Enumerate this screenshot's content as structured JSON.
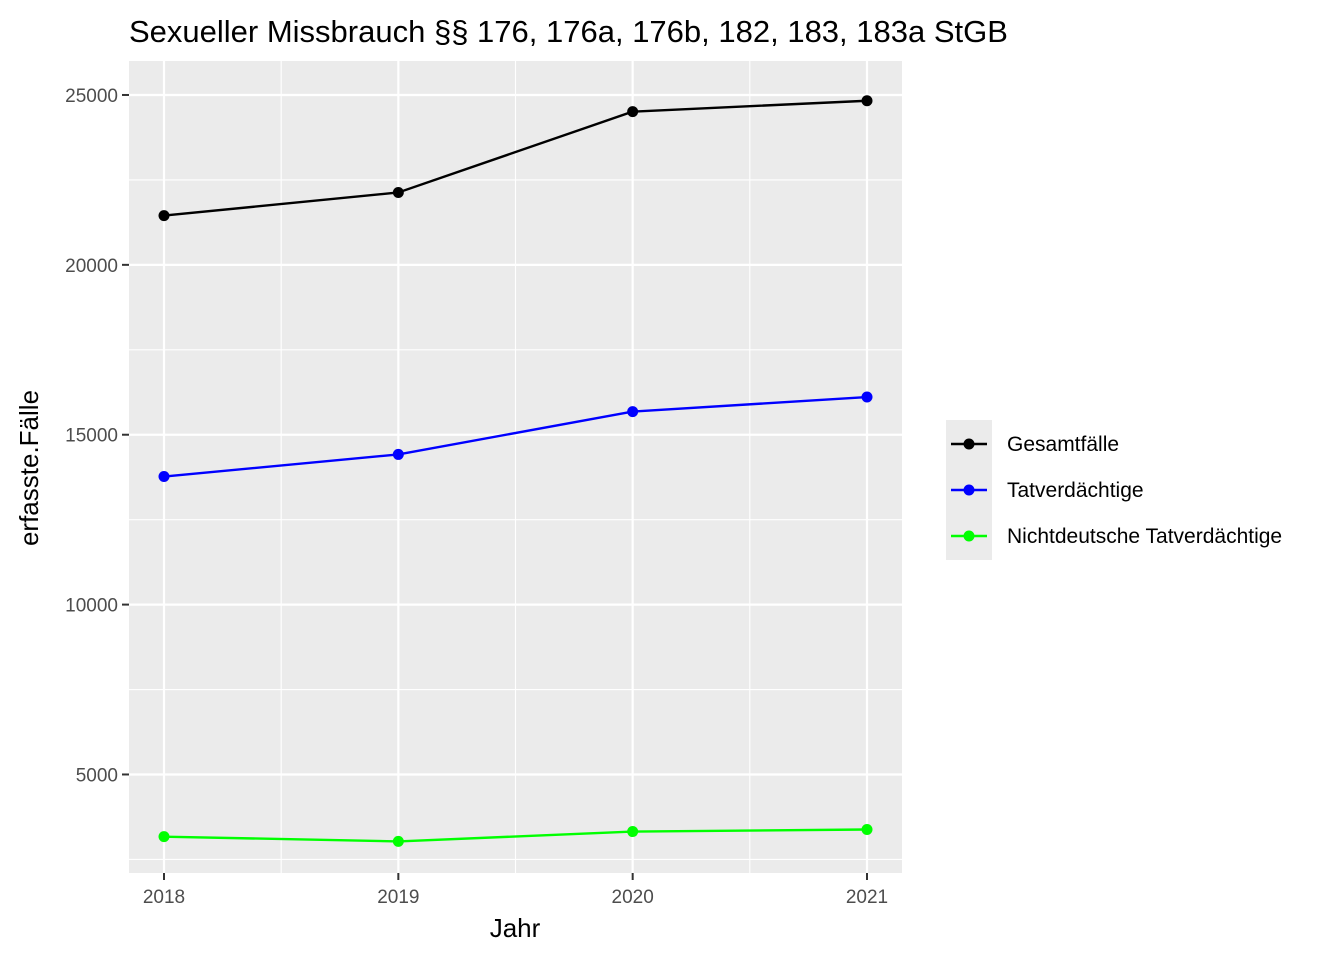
{
  "chart_data": {
    "type": "line",
    "title": "Sexueller Missbrauch §§ 176, 176a, 176b, 182, 183, 183a StGB",
    "xlabel": "Jahr",
    "ylabel": "erfasste.Fälle",
    "x": [
      2018,
      2019,
      2020,
      2021
    ],
    "x_ticks": [
      "2018",
      "2019",
      "2020",
      "2021"
    ],
    "y_ticks": [
      "5000",
      "10000",
      "15000",
      "20000",
      "25000"
    ],
    "ylim": [
      2100,
      26000
    ],
    "grid": true,
    "legend_position": "right",
    "series": [
      {
        "name": "Gesamtfälle",
        "color": "#000000",
        "values": [
          21450,
          22130,
          24510,
          24830
        ]
      },
      {
        "name": "Tatverdächtige",
        "color": "#0000ff",
        "values": [
          13770,
          14420,
          15680,
          16110
        ]
      },
      {
        "name": "Nichtdeutsche Tatverdächtige",
        "color": "#00ff00",
        "values": [
          3170,
          3030,
          3320,
          3380
        ]
      }
    ]
  }
}
